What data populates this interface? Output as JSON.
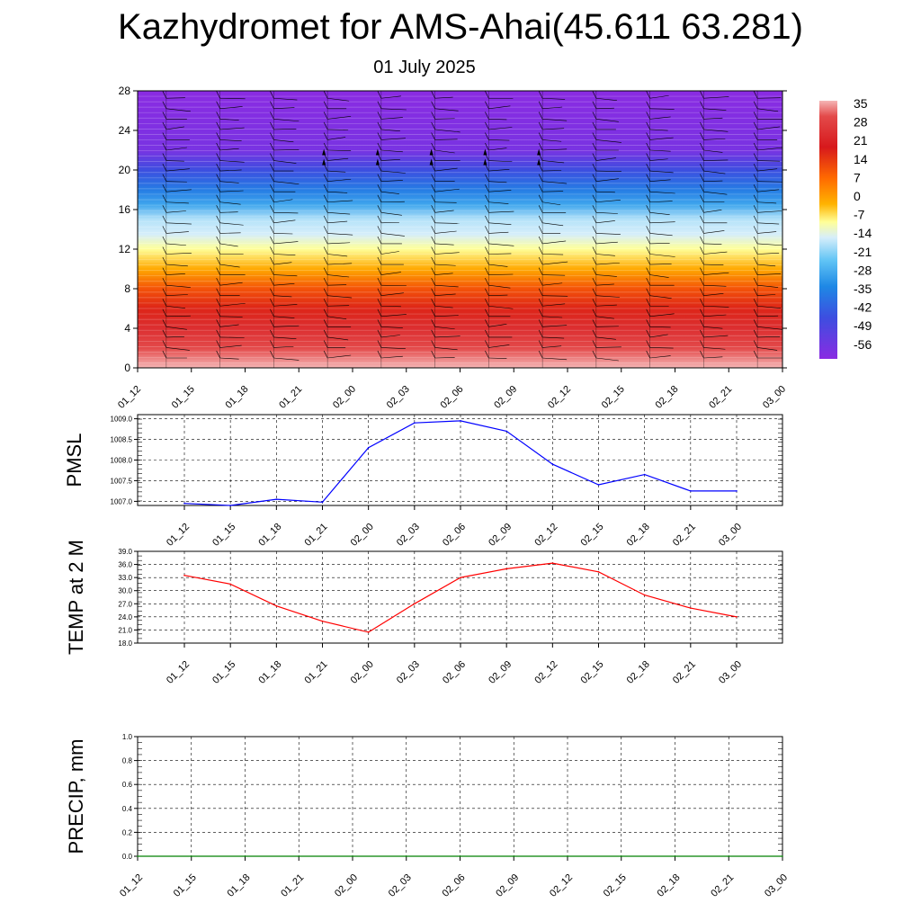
{
  "header": {
    "title": "Kazhydromet for AMS-Ahai(45.611 63.281)",
    "date": "01 July 2025"
  },
  "chart_data": [
    {
      "type": "heatmap",
      "name": "vertical-cross-section",
      "x_ticks": [
        "01_12",
        "01_15",
        "01_18",
        "01_21",
        "02_00",
        "02_03",
        "02_06",
        "02_09",
        "02_12",
        "02_15",
        "02_18",
        "02_21",
        "03_00"
      ],
      "y_ticks": [
        "0",
        "4",
        "8",
        "12",
        "16",
        "20",
        "24",
        "28"
      ],
      "ylim": [
        0,
        28
      ],
      "colorbar_labels": [
        "35",
        "28",
        "21",
        "14",
        "7",
        "0",
        "-7",
        "-14",
        "-21",
        "-28",
        "-35",
        "-42",
        "-49",
        "-56"
      ],
      "layers": [
        {
          "y": 0,
          "value": 35
        },
        {
          "y": 2,
          "value": 28
        },
        {
          "y": 4,
          "value": 24
        },
        {
          "y": 6,
          "value": 20
        },
        {
          "y": 8,
          "value": 16
        },
        {
          "y": 10,
          "value": 8
        },
        {
          "y": 12,
          "value": 0
        },
        {
          "y": 13.5,
          "value": -7
        },
        {
          "y": 15,
          "value": -16
        },
        {
          "y": 16.5,
          "value": -28
        },
        {
          "y": 18,
          "value": -38
        },
        {
          "y": 20,
          "value": -49
        },
        {
          "y": 22,
          "value": -56
        },
        {
          "y": 28,
          "value": -58
        }
      ],
      "colors": {
        "dark_red": "#a50f15",
        "red": "#e31a1c",
        "orange": "#ff8c00",
        "yellow": "#ffff66",
        "light_blue": "#bfe6ff",
        "blue": "#1e90ff",
        "indigo": "#3b3bff",
        "violet": "#8a2be2"
      }
    },
    {
      "type": "line",
      "name": "pmsl",
      "ylabel": "PMSL",
      "x": [
        "01_12",
        "01_15",
        "01_18",
        "01_21",
        "02_00",
        "02_03",
        "02_06",
        "02_09",
        "02_12",
        "02_15",
        "02_18",
        "02_21",
        "03_00"
      ],
      "y_ticks": [
        "1007.0",
        "1007.5",
        "1008.0",
        "1008.5",
        "1009.0"
      ],
      "ylim": [
        1006.9,
        1009.1
      ],
      "values": [
        1006.95,
        1006.9,
        1007.05,
        1006.98,
        1008.3,
        1008.9,
        1008.95,
        1008.7,
        1007.9,
        1007.4,
        1007.65,
        1007.25,
        1007.25
      ],
      "color": "#0000ff"
    },
    {
      "type": "line",
      "name": "temp2m",
      "ylabel": "TEMP at 2 M",
      "x": [
        "01_12",
        "01_15",
        "01_18",
        "01_21",
        "02_00",
        "02_03",
        "02_06",
        "02_09",
        "02_12",
        "02_15",
        "02_18",
        "02_21",
        "03_00"
      ],
      "y_ticks": [
        "18.0",
        "21.0",
        "24.0",
        "27.0",
        "30.0",
        "33.0",
        "36.0",
        "39.0"
      ],
      "ylim": [
        18,
        39
      ],
      "values": [
        33.5,
        31.5,
        26.5,
        23.0,
        20.5,
        27.0,
        33.0,
        35.0,
        36.3,
        34.3,
        29.0,
        26.0,
        24.0
      ],
      "color": "#ff0000"
    },
    {
      "type": "line",
      "name": "precip",
      "ylabel": "PRECIP, mm",
      "x": [
        "01_12",
        "01_15",
        "01_18",
        "01_21",
        "02_00",
        "02_03",
        "02_06",
        "02_09",
        "02_12",
        "02_15",
        "02_18",
        "02_21",
        "03_00"
      ],
      "y_ticks": [
        "0.0",
        "0.2",
        "0.4",
        "0.6",
        "0.8",
        "1.0"
      ],
      "ylim": [
        0,
        1
      ],
      "values": [
        0,
        0,
        0,
        0,
        0,
        0,
        0,
        0,
        0,
        0,
        0,
        0,
        0
      ],
      "color": "#008000"
    }
  ]
}
